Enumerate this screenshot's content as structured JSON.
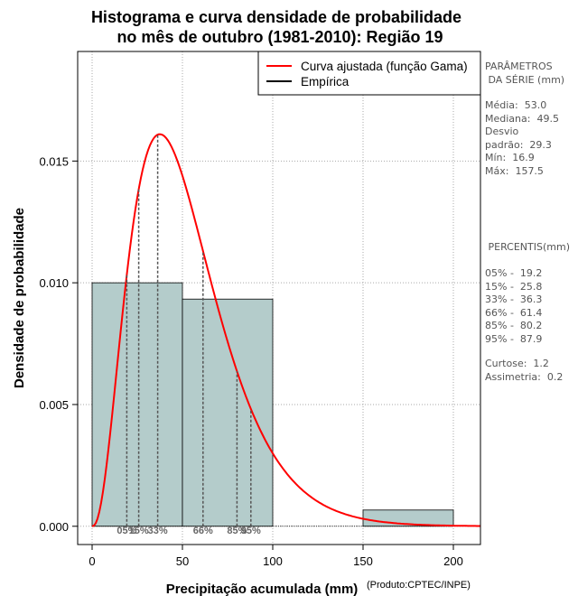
{
  "chart_data": {
    "type": "histogram",
    "title_lines": [
      "Histograma e curva densidade de probabilidade",
      "no mês de outubro (1981-2010): Região 19"
    ],
    "xlabel": "Precipitação acumulada (mm)",
    "ylabel": "Densidade de probabilidade",
    "credit": "(Produto:CPTEC/INPE)",
    "xlim": [
      -8,
      215
    ],
    "ylim": [
      -0.00075,
      0.0195
    ],
    "x_ticks": [
      0,
      50,
      100,
      150,
      200
    ],
    "y_ticks": [
      0.0,
      0.005,
      0.01,
      0.015
    ],
    "y_tick_labels": [
      "0.000",
      "0.005",
      "0.010",
      "0.015"
    ],
    "grid": true,
    "legend_position": "top-right",
    "bins": [
      {
        "from": 0,
        "to": 50,
        "density": 0.01
      },
      {
        "from": 50,
        "to": 100,
        "density": 0.00933
      },
      {
        "from": 100,
        "to": 150,
        "density": 0.0
      },
      {
        "from": 150,
        "to": 200,
        "density": 0.000667
      }
    ],
    "series": [
      {
        "name": "Curva ajustada (função Gama)",
        "color": "#ff0000",
        "gamma_shape": 3.45,
        "gamma_scale": 15.3
      },
      {
        "name": "Empírica",
        "color": "#000000"
      }
    ],
    "percentiles": [
      {
        "label": "05%",
        "value": 19.2
      },
      {
        "label": "15%",
        "value": 25.8
      },
      {
        "label": "33%",
        "value": 36.3
      },
      {
        "label": "66%",
        "value": 61.4
      },
      {
        "label": "85%",
        "value": 80.2
      },
      {
        "label": "95%",
        "value": 87.9
      }
    ],
    "colors": {
      "bar_fill": "#b4cccb",
      "curve": "#ff0000",
      "grid": "#aaaaaa",
      "percentile_line": "#555555"
    }
  },
  "side_panel": {
    "params_heading": "PARÂMETROS\n DA SÉRIE (mm)",
    "stats": "Média:  53.0\nMediana:  49.5\nDesvio\npadrão:  29.3\nMín:  16.9\nMáx:  157.5",
    "percentis_heading": " PERCENTIS(mm)",
    "percentis": "05% -  19.2\n15% -  25.8\n33% -  36.3\n66% -  61.4\n85% -  80.2\n95% -  87.9",
    "extra": "Curtose:  1.2\nAssimetria:  0.2"
  }
}
